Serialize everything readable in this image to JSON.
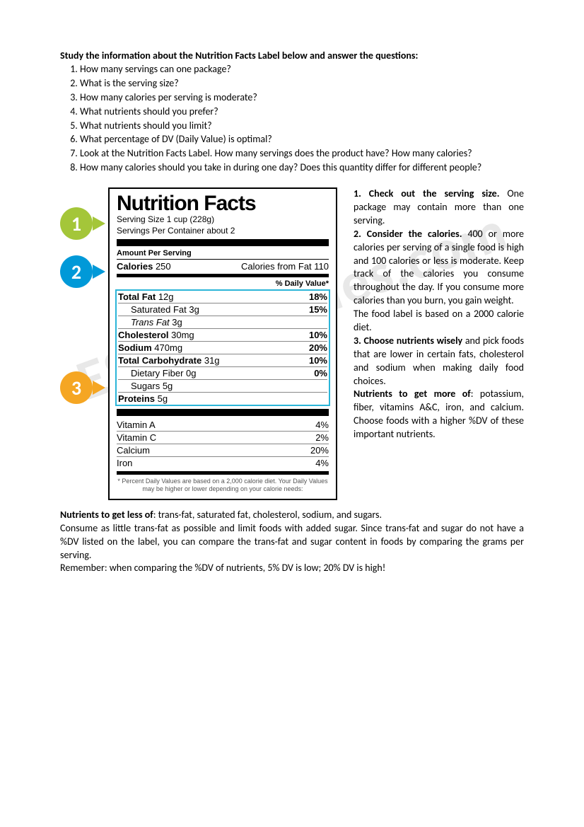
{
  "intro": "Study the information about the Nutrition Facts Label below and answer the questions:",
  "questions": [
    "How many servings can one package?",
    "What is the serving size?",
    "How many calories per serving is moderate?",
    "What nutrients should you prefer?",
    "What nutrients should you limit?",
    "What percentage of DV (Daily Value) is optimal?",
    "Look at the Nutrition Facts Label. How many servings does the product have? How many calories?",
    "How many calories should you take in during one day? Does this quantity differ for different people?"
  ],
  "badges": {
    "b1": "1",
    "b2": "2",
    "b3": "3"
  },
  "badge_colors": {
    "b1": "#a4c639",
    "b2": "#0099d8",
    "b3": "#f5a623"
  },
  "label": {
    "title": "Nutrition Facts",
    "serving_size": "Serving Size 1 cup (228g)",
    "servings_per": "Servings Per Container about 2",
    "amount_per": "Amount Per Serving",
    "cal_label": "Calories",
    "cal_value": "250",
    "cal_fat": "Calories from Fat 110",
    "dv_header": "% Daily Value*",
    "rows": [
      {
        "name": "Total Fat",
        "amt": "12g",
        "pct": "18%",
        "bold": true,
        "indent": false
      },
      {
        "name": "Saturated Fat",
        "amt": "3g",
        "pct": "15%",
        "bold": false,
        "indent": true
      },
      {
        "name": "Trans Fat",
        "amt": "3g",
        "pct": "",
        "bold": false,
        "indent": true,
        "italic": true
      },
      {
        "name": "Cholesterol",
        "amt": "30mg",
        "pct": "10%",
        "bold": true,
        "indent": false
      },
      {
        "name": "Sodium",
        "amt": "470mg",
        "pct": "20%",
        "bold": true,
        "indent": false
      },
      {
        "name": "Total Carbohydrate",
        "amt": "31g",
        "pct": "10%",
        "bold": true,
        "indent": false
      },
      {
        "name": "Dietary Fiber",
        "amt": "0g",
        "pct": "0%",
        "bold": false,
        "indent": true
      },
      {
        "name": "Sugars",
        "amt": "5g",
        "pct": "",
        "bold": false,
        "indent": true
      },
      {
        "name": "Proteins",
        "amt": "5g",
        "pct": "",
        "bold": true,
        "indent": false
      }
    ],
    "vitamins": [
      {
        "name": "Vitamin A",
        "pct": "4%"
      },
      {
        "name": "Vitamin C",
        "pct": "2%"
      },
      {
        "name": "Calcium",
        "pct": "20%"
      },
      {
        "name": "Iron",
        "pct": "4%"
      }
    ],
    "footnote": "* Percent Daily Values are based on a 2,000 calorie diet. Your Daily Values may be higher or lower depending on your calorie needs:"
  },
  "side": {
    "h1": "1. Check out the serving size.",
    "t1": " One package may contain more than one serving.",
    "h2": "2. Consider the calories.",
    "t2": " 400 or more calories per serving of a single food is high and 100 calories or less is moderate. Keep track of the calories you consume throughout the day. If you consume more calories than you burn, you gain weight.",
    "t2b": "The food label is based on a 2000 calorie diet.",
    "h3": "3. Choose nutrients wisely",
    "t3": " and pick foods that are lower in certain fats, cholesterol and sodium when making daily food choices.",
    "h4": "Nutrients to get more of",
    "t4": ": potassium, fiber, vitamins A&C, iron, and calcium. Choose foods with a higher %DV of these important nutrients."
  },
  "bottom": {
    "h1": "Nutrients to get less of",
    "t1": ": trans-fat, saturated fat, cholesterol, sodium, and sugars.",
    "t2": "Consume as little trans-fat as possible and limit foods with added sugar. Since trans-fat and sugar do not have a %DV listed on the label, you can compare the trans-fat and sugar content in foods by comparing the grams per serving.",
    "t3": "Remember: when comparing the %DV of nutrients, 5% DV is low; 20% DV is high!"
  },
  "watermark": "ESLPrintables.com"
}
